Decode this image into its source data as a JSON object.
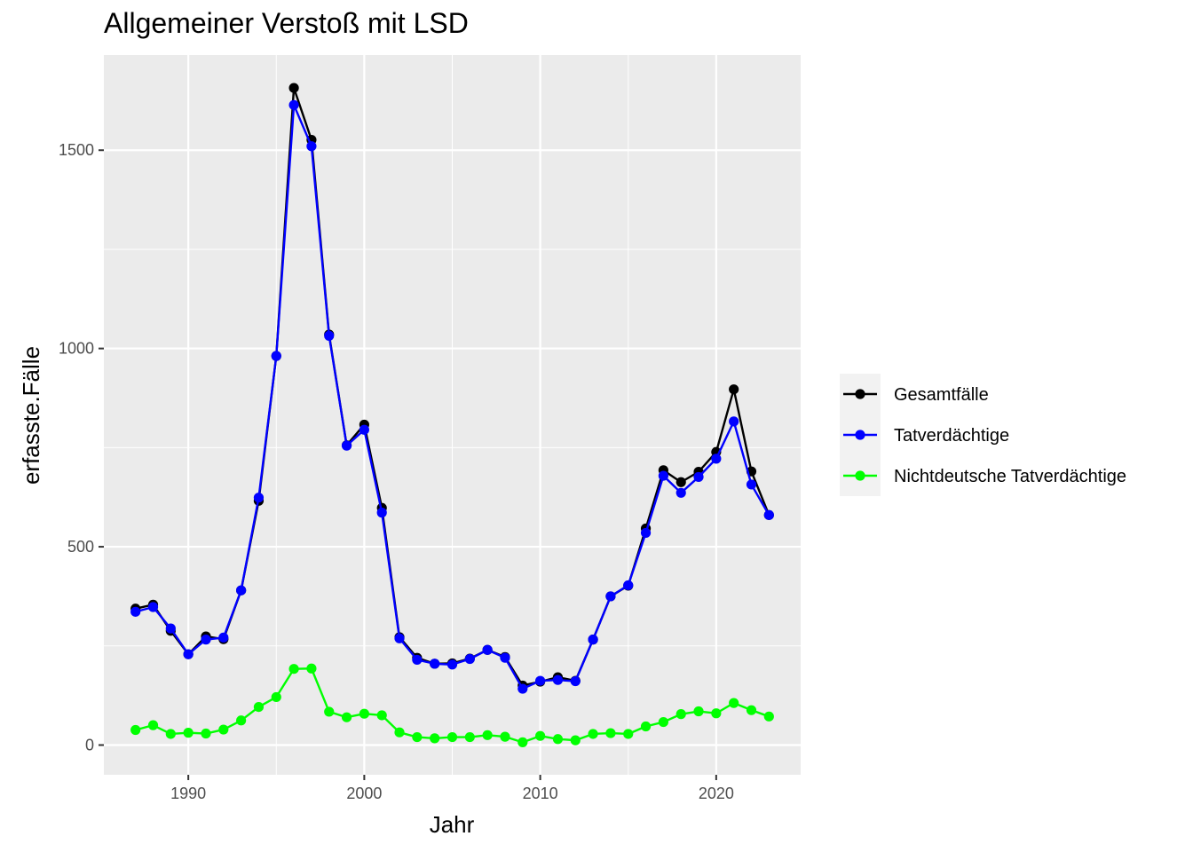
{
  "chart_data": {
    "type": "line",
    "title": "Allgemeiner Verstoß mit LSD",
    "xlabel": "Jahr",
    "ylabel": "erfasste.Fälle",
    "xlim": [
      1985.2,
      2024.8
    ],
    "ylim": [
      -75,
      1740
    ],
    "xticks": [
      1990,
      2000,
      2010,
      2020
    ],
    "yticks": [
      0,
      500,
      1000,
      1500
    ],
    "grid": true,
    "legend_position": "right",
    "x": [
      1987,
      1988,
      1989,
      1990,
      1991,
      1992,
      1993,
      1994,
      1995,
      1996,
      1997,
      1998,
      1999,
      2000,
      2001,
      2002,
      2003,
      2004,
      2005,
      2006,
      2007,
      2008,
      2009,
      2010,
      2011,
      2012,
      2013,
      2014,
      2015,
      2016,
      2017,
      2018,
      2019,
      2020,
      2021,
      2022,
      2023
    ],
    "series": [
      {
        "name": "Gesamtfälle",
        "color": "#000000",
        "values": [
          344,
          354,
          288,
          229,
          274,
          267,
          390,
          616,
          981,
          1657,
          1526,
          1035,
          756,
          808,
          598,
          272,
          220,
          205,
          206,
          218,
          240,
          222,
          150,
          160,
          171,
          162,
          266,
          375,
          402,
          546,
          693,
          663,
          689,
          739,
          897,
          690,
          580
        ]
      },
      {
        "name": "Tatverdächtige",
        "color": "#0000ff",
        "values": [
          336,
          348,
          294,
          229,
          266,
          271,
          390,
          624,
          981,
          1614,
          1510,
          1032,
          755,
          795,
          586,
          269,
          215,
          205,
          203,
          217,
          240,
          220,
          142,
          162,
          164,
          161,
          266,
          375,
          403,
          535,
          679,
          636,
          676,
          722,
          816,
          657,
          580
        ]
      },
      {
        "name": "Nichtdeutsche Tatverdächtige",
        "color": "#00ff00",
        "values": [
          38,
          50,
          28,
          31,
          29,
          39,
          62,
          96,
          121,
          192,
          193,
          84,
          70,
          79,
          75,
          32,
          20,
          17,
          20,
          20,
          25,
          21,
          7,
          23,
          15,
          12,
          28,
          30,
          28,
          47,
          58,
          78,
          85,
          80,
          106,
          88,
          72
        ]
      }
    ]
  }
}
